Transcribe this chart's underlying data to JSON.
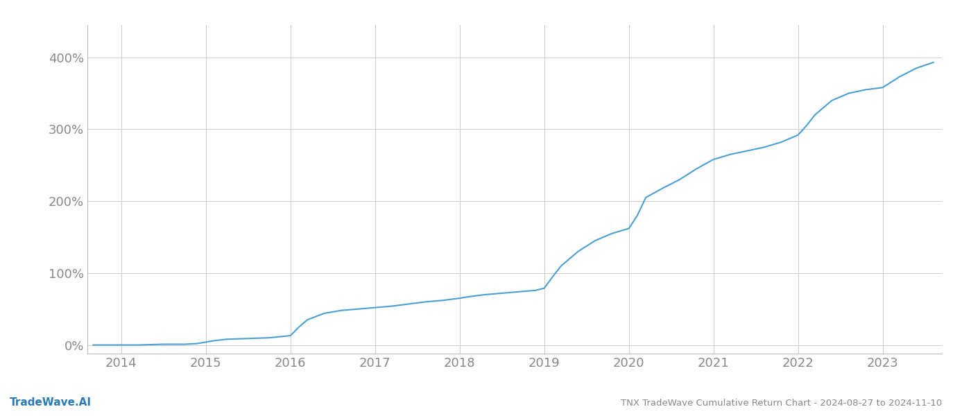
{
  "title": "TNX TradeWave Cumulative Return Chart - 2024-08-27 to 2024-11-10",
  "watermark": "TradeWave.AI",
  "line_color": "#4a9fd4",
  "background_color": "#ffffff",
  "grid_color": "#cccccc",
  "axis_label_color": "#888888",
  "title_color": "#888888",
  "watermark_color": "#2a7ab5",
  "xlim_start": 2013.6,
  "xlim_end": 2023.7,
  "ylim_min": -0.12,
  "ylim_max": 4.45,
  "x_years": [
    2014,
    2015,
    2016,
    2017,
    2018,
    2019,
    2020,
    2021,
    2022,
    2023
  ],
  "yticks": [
    0.0,
    1.0,
    2.0,
    3.0,
    4.0
  ],
  "ytick_labels": [
    "0%",
    "100%",
    "200%",
    "300%",
    "400%"
  ],
  "line_data_x": [
    2013.67,
    2014.0,
    2014.2,
    2014.5,
    2014.75,
    2014.9,
    2015.0,
    2015.1,
    2015.25,
    2015.5,
    2015.75,
    2016.0,
    2016.1,
    2016.2,
    2016.4,
    2016.6,
    2016.8,
    2017.0,
    2017.2,
    2017.4,
    2017.6,
    2017.8,
    2018.0,
    2018.1,
    2018.3,
    2018.5,
    2018.7,
    2018.9,
    2019.0,
    2019.1,
    2019.2,
    2019.4,
    2019.6,
    2019.8,
    2020.0,
    2020.1,
    2020.2,
    2020.4,
    2020.6,
    2020.8,
    2021.0,
    2021.2,
    2021.4,
    2021.6,
    2021.8,
    2022.0,
    2022.1,
    2022.2,
    2022.4,
    2022.6,
    2022.8,
    2023.0,
    2023.2,
    2023.4,
    2023.6
  ],
  "line_data_y": [
    0.0,
    0.0,
    0.0,
    0.01,
    0.01,
    0.02,
    0.04,
    0.06,
    0.08,
    0.09,
    0.1,
    0.13,
    0.25,
    0.35,
    0.44,
    0.48,
    0.5,
    0.52,
    0.54,
    0.57,
    0.6,
    0.62,
    0.65,
    0.67,
    0.7,
    0.72,
    0.74,
    0.76,
    0.79,
    0.95,
    1.1,
    1.3,
    1.45,
    1.55,
    1.62,
    1.8,
    2.05,
    2.18,
    2.3,
    2.45,
    2.58,
    2.65,
    2.7,
    2.75,
    2.82,
    2.92,
    3.05,
    3.2,
    3.4,
    3.5,
    3.55,
    3.58,
    3.73,
    3.85,
    3.93
  ],
  "line_width": 1.5,
  "figsize": [
    14.0,
    6.0
  ],
  "dpi": 100
}
